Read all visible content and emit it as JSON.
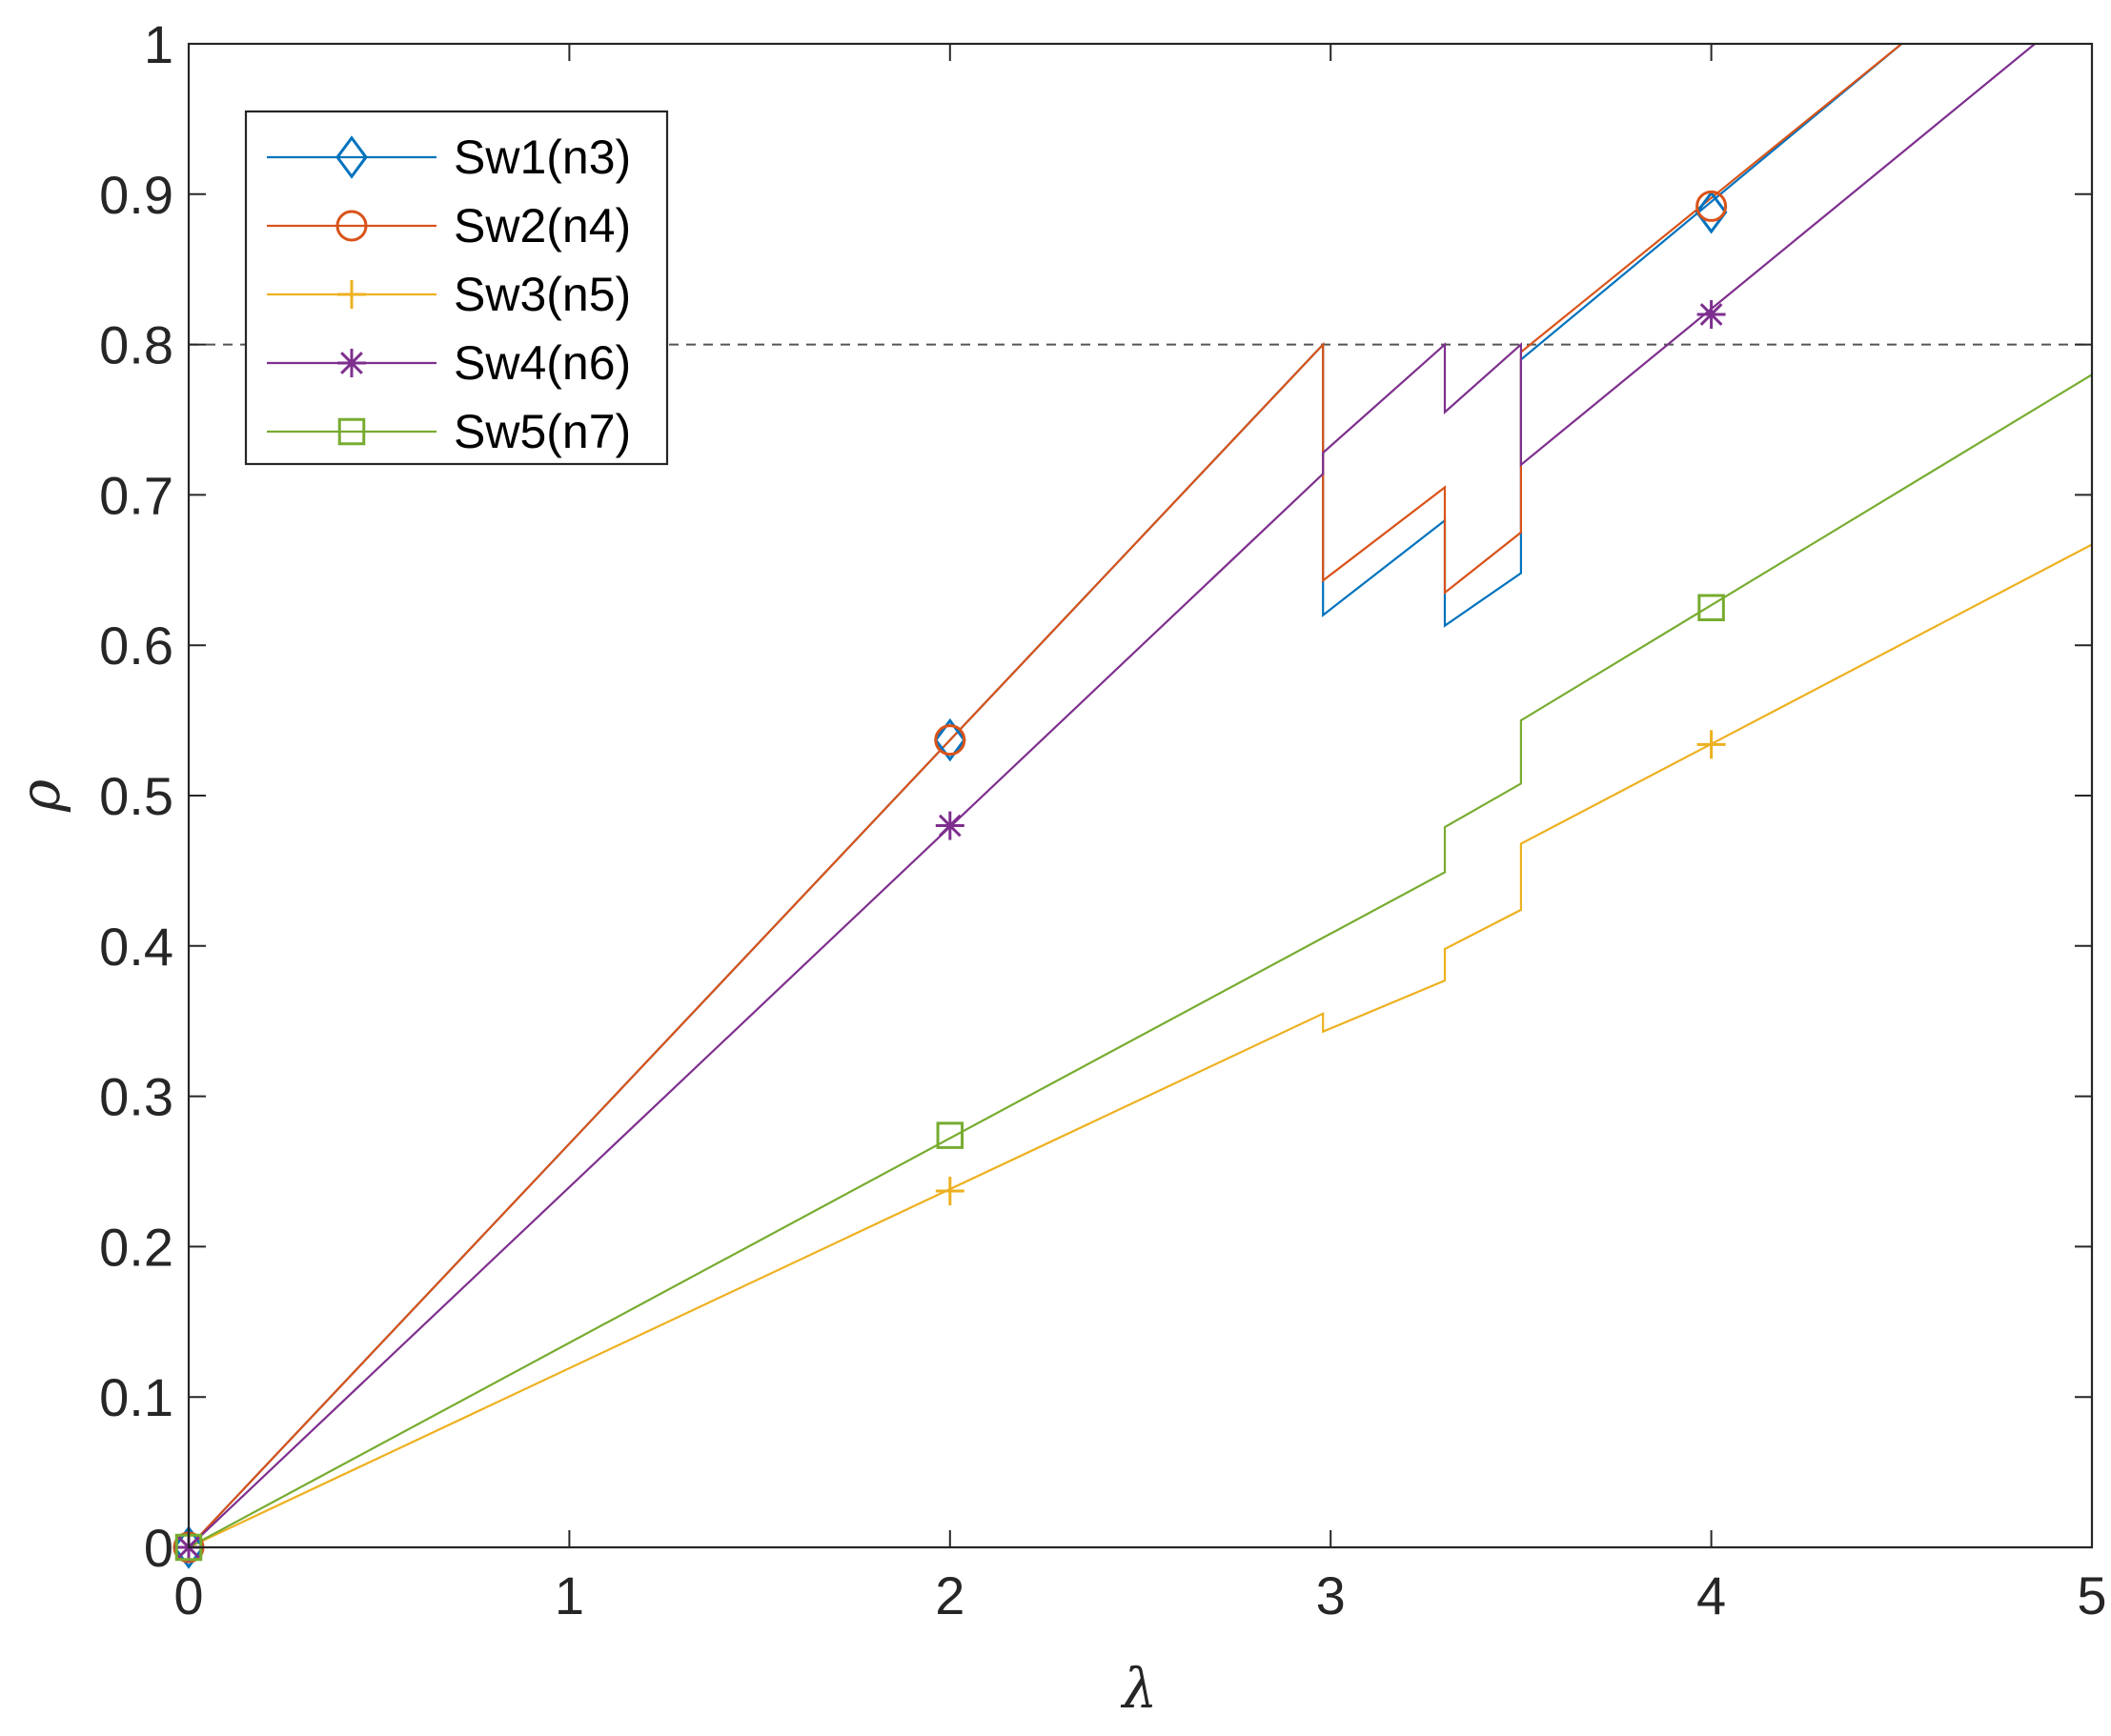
{
  "chart_data": {
    "type": "line",
    "title": "",
    "xlabel": "λ",
    "ylabel": "ρ",
    "xlim": [
      0,
      5
    ],
    "ylim": [
      0,
      1
    ],
    "x_ticks": [
      "0",
      "1",
      "2",
      "3",
      "4",
      "5"
    ],
    "y_ticks": [
      "0",
      "0.1",
      "0.2",
      "0.3",
      "0.4",
      "0.5",
      "0.6",
      "0.7",
      "0.8",
      "0.9",
      "1"
    ],
    "grid": false,
    "legend_position": "top-left",
    "reference_line": {
      "y": 0.8,
      "style": "dashed",
      "color": "#555555"
    },
    "series": [
      {
        "name": "Sw1(n3)",
        "color": "#0072BD",
        "marker": "diamond",
        "points": [
          [
            0,
            0
          ],
          [
            2.98,
            0.8
          ],
          [
            2.98,
            0.62
          ],
          [
            3.3,
            0.683
          ],
          [
            3.3,
            0.613
          ],
          [
            3.5,
            0.648
          ],
          [
            3.5,
            0.79
          ],
          [
            4.5,
            1.0
          ]
        ],
        "marker_points": [
          [
            0,
            0
          ],
          [
            2,
            0.537
          ],
          [
            4,
            0.888
          ]
        ]
      },
      {
        "name": "Sw2(n4)",
        "color": "#D95319",
        "marker": "circle",
        "points": [
          [
            0,
            0
          ],
          [
            2.98,
            0.8
          ],
          [
            2.98,
            0.643
          ],
          [
            3.3,
            0.705
          ],
          [
            3.3,
            0.635
          ],
          [
            3.5,
            0.675
          ],
          [
            3.5,
            0.795
          ],
          [
            4.5,
            1.0
          ]
        ],
        "marker_points": [
          [
            0,
            0
          ],
          [
            2,
            0.537
          ],
          [
            4,
            0.892
          ]
        ]
      },
      {
        "name": "Sw3(n5)",
        "color": "#EDB120",
        "marker": "plus",
        "points": [
          [
            0,
            0
          ],
          [
            2.98,
            0.355
          ],
          [
            2.98,
            0.343
          ],
          [
            3.3,
            0.377
          ],
          [
            3.3,
            0.398
          ],
          [
            3.5,
            0.424
          ],
          [
            3.5,
            0.468
          ],
          [
            5,
            0.667
          ]
        ],
        "marker_points": [
          [
            0,
            0
          ],
          [
            2,
            0.237
          ],
          [
            4,
            0.534
          ]
        ]
      },
      {
        "name": "Sw4(n6)",
        "color": "#7E2F8E",
        "marker": "asterisk",
        "points": [
          [
            0,
            0
          ],
          [
            2.98,
            0.714
          ],
          [
            2.98,
            0.728
          ],
          [
            3.3,
            0.8
          ],
          [
            3.3,
            0.755
          ],
          [
            3.5,
            0.8
          ],
          [
            3.5,
            0.72
          ],
          [
            4.85,
            1.0
          ]
        ],
        "marker_points": [
          [
            0,
            0
          ],
          [
            2,
            0.48
          ],
          [
            4,
            0.82
          ]
        ]
      },
      {
        "name": "Sw5(n7)",
        "color": "#77AC30",
        "marker": "square",
        "points": [
          [
            0,
            0
          ],
          [
            3.3,
            0.449
          ],
          [
            3.3,
            0.479
          ],
          [
            3.5,
            0.508
          ],
          [
            3.5,
            0.55
          ],
          [
            5,
            0.78
          ]
        ],
        "marker_points": [
          [
            0,
            0
          ],
          [
            2,
            0.274
          ],
          [
            4,
            0.625
          ]
        ]
      }
    ]
  }
}
